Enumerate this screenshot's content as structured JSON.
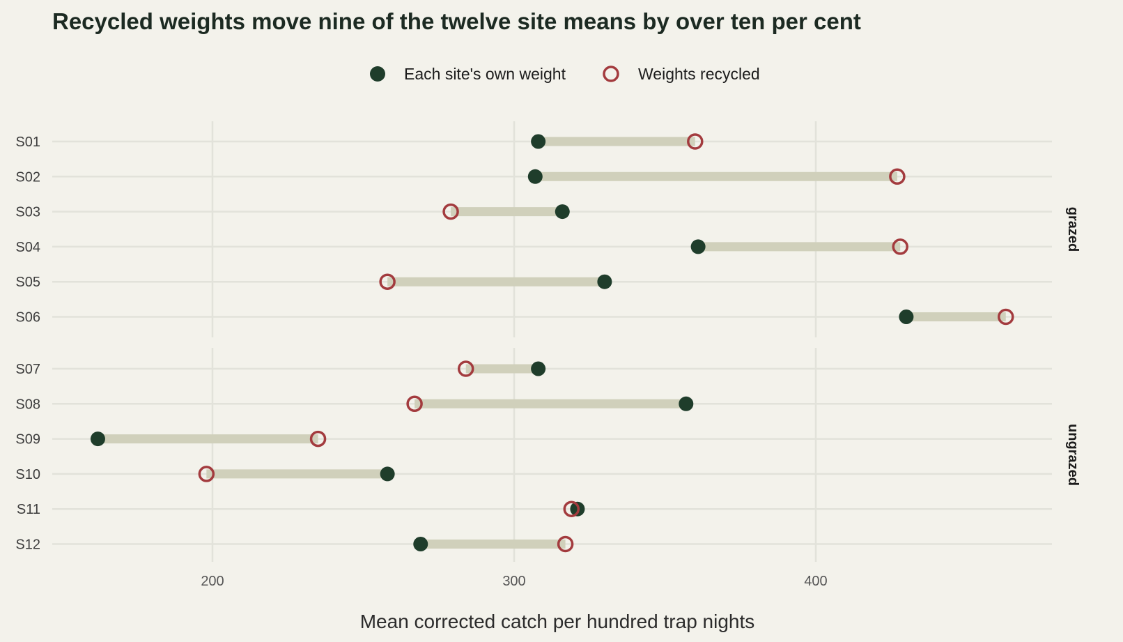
{
  "chart_data": {
    "type": "dumbbell",
    "title": "Recycled weights move nine of the twelve site means by over ten per cent",
    "xlabel": "Mean corrected catch per hundred trap nights",
    "ylabel": "",
    "xlim": [
      146,
      478
    ],
    "x_ticks": [
      200,
      300,
      400
    ],
    "grid": true,
    "legend_position": "top",
    "series": [
      {
        "key": "own",
        "name": "Each site's own weight",
        "marker": "filled-circle",
        "color": "#1f3d2b"
      },
      {
        "key": "recycled",
        "name": "Weights recycled",
        "marker": "open-circle",
        "color": "#a33b3e"
      }
    ],
    "segment_color": "#d0d0bb",
    "facets": [
      {
        "label": "grazed",
        "sites": [
          {
            "site": "S01",
            "own": 308,
            "recycled": 360
          },
          {
            "site": "S02",
            "own": 307,
            "recycled": 427
          },
          {
            "site": "S03",
            "own": 316,
            "recycled": 279
          },
          {
            "site": "S04",
            "own": 361,
            "recycled": 428
          },
          {
            "site": "S05",
            "own": 330,
            "recycled": 258
          },
          {
            "site": "S06",
            "own": 430,
            "recycled": 463
          }
        ]
      },
      {
        "label": "ungrazed",
        "sites": [
          {
            "site": "S07",
            "own": 308,
            "recycled": 284
          },
          {
            "site": "S08",
            "own": 357,
            "recycled": 267
          },
          {
            "site": "S09",
            "own": 162,
            "recycled": 235
          },
          {
            "site": "S10",
            "own": 258,
            "recycled": 198
          },
          {
            "site": "S11",
            "own": 321,
            "recycled": 319
          },
          {
            "site": "S12",
            "own": 269,
            "recycled": 317
          }
        ]
      }
    ]
  }
}
